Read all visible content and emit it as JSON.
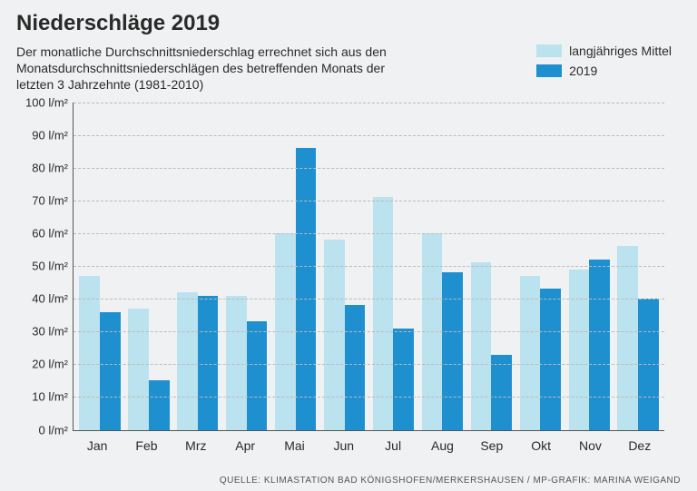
{
  "title": "Niederschläge 2019",
  "subtitle": "Der monatliche Durchschnittsniederschlag errechnet sich aus den Monatsdurchschnittsniederschlägen des betreffenden Monats der letzten 3 Jahrzehnte (1981-2010)",
  "legend": {
    "series_a_label": "langjähriges Mittel",
    "series_b_label": "2019"
  },
  "chart": {
    "type": "bar",
    "ymax": 100,
    "ymin": 0,
    "ytick_step": 10,
    "y_unit": "l/m²",
    "colors": {
      "series_a": "#bbe2ef",
      "series_b": "#1e8fcf",
      "grid": "#bbbbbb",
      "axis": "#555555",
      "background": "#f0f1f2",
      "text": "#2a2a2a"
    },
    "categories": [
      "Jan",
      "Feb",
      "Mrz",
      "Apr",
      "Mai",
      "Jun",
      "Jul",
      "Aug",
      "Sep",
      "Okt",
      "Nov",
      "Dez"
    ],
    "series_a": [
      47,
      37,
      42,
      41,
      60,
      58,
      71,
      60,
      51,
      47,
      49,
      56
    ],
    "series_b": [
      36,
      15,
      41,
      33,
      86,
      38,
      31,
      48,
      23,
      43,
      52,
      40
    ],
    "title_fontsize": 24,
    "subtitle_fontsize": 14,
    "axis_fontsize": 13,
    "bar_width_pct": 42
  },
  "source": "QUELLE: KLIMASTATION BAD KÖNIGSHOFEN/MERKERSHAUSEN / MP-GRAFIK: MARINA WEIGAND"
}
